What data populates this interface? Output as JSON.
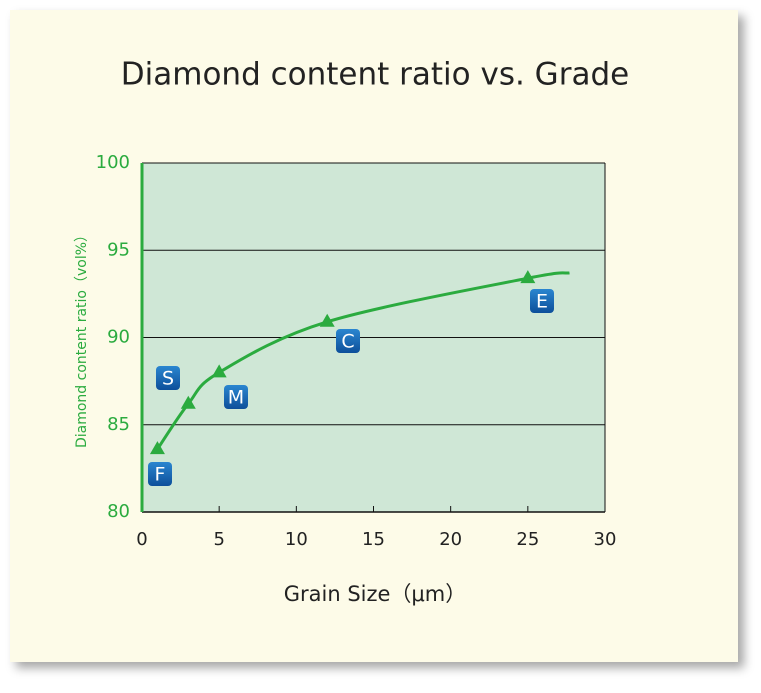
{
  "chart_data": {
    "type": "line",
    "title": "Diamond content ratio vs. Grade",
    "x_label": "Grain Size（μm）",
    "y_label": "Diamond content ratio（vol%）",
    "series": [
      {
        "color": "#2bab3f",
        "x": [
          1,
          3,
          5,
          12,
          25
        ],
        "values": [
          83.6,
          86.2,
          88.0,
          90.9,
          93.4
        ]
      }
    ],
    "curve": {
      "color": "#2bab3f",
      "x": [
        1,
        3,
        5,
        12,
        25,
        27.7
      ],
      "values": [
        83.6,
        86.2,
        88.0,
        90.9,
        93.4,
        93.7
      ]
    },
    "annotations": [
      "F",
      "S",
      "M",
      "C",
      "E"
    ],
    "xlim": [
      0,
      30
    ],
    "xticks": [
      0,
      5,
      10,
      15,
      20,
      25,
      30
    ],
    "ylim": [
      80,
      100
    ],
    "yticks": [
      80,
      85,
      90,
      95,
      100
    ],
    "grid": true
  }
}
